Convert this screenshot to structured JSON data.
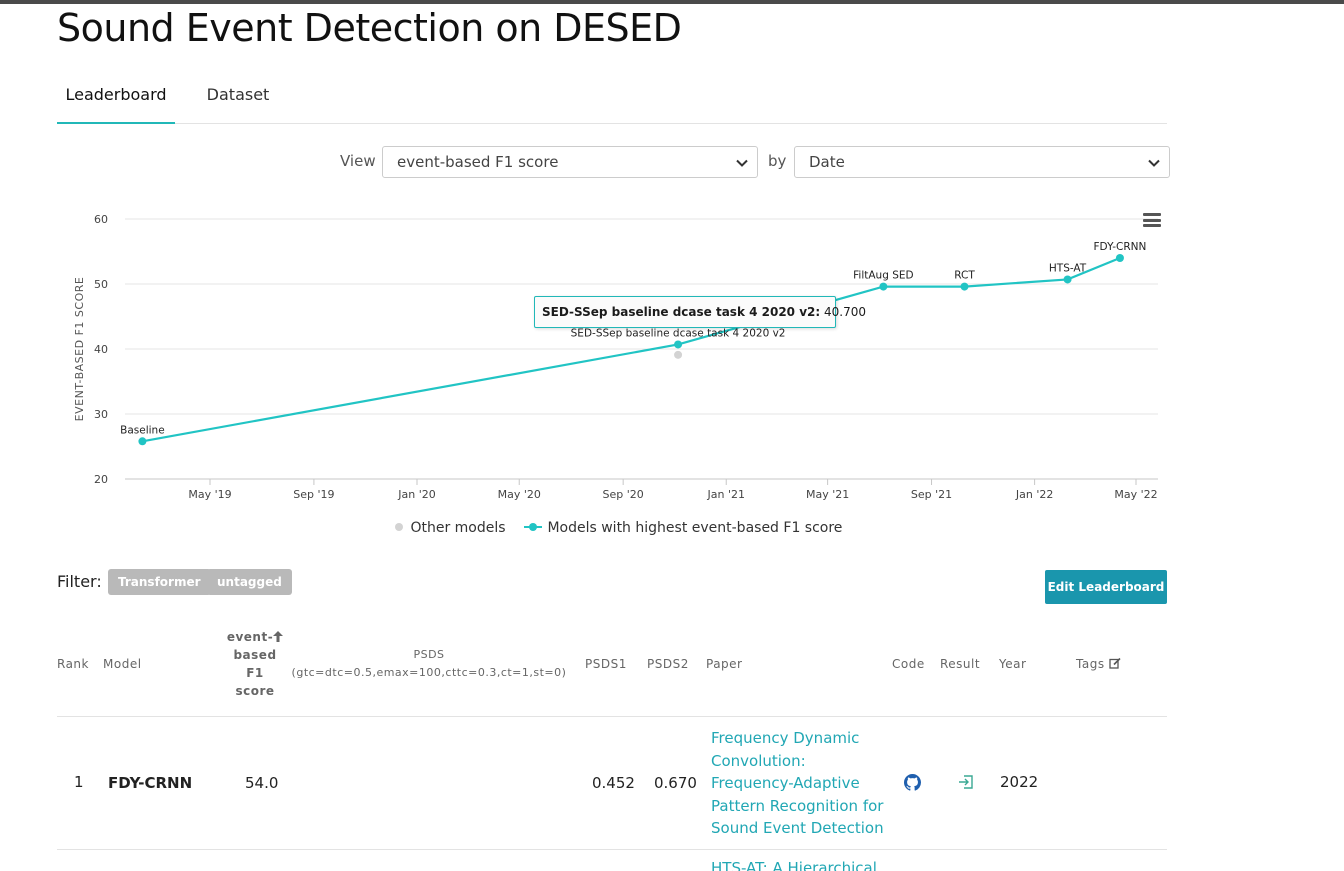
{
  "page": {
    "title": "Sound Event Detection on DESED"
  },
  "tabs": [
    {
      "label": "Leaderboard"
    },
    {
      "label": "Dataset"
    }
  ],
  "controls": {
    "view_label": "View",
    "view_selected": "event-based F1 score",
    "by_label": "by",
    "by_selected": "Date"
  },
  "chart_data": {
    "type": "line",
    "ylabel": "EVENT-BASED F1 SCORE",
    "ylim": [
      20,
      60
    ],
    "y_ticks": [
      20,
      30,
      40,
      50,
      60
    ],
    "x_axis": "date",
    "x_ticks": [
      "May '19",
      "Sep '19",
      "Jan '20",
      "May '20",
      "Sep '20",
      "Jan '21",
      "May '21",
      "Sep '21",
      "Jan '22",
      "May '22"
    ],
    "x_tick_dates": [
      "2019-05-01",
      "2019-09-01",
      "2020-01-01",
      "2020-05-01",
      "2020-09-01",
      "2021-01-01",
      "2021-05-01",
      "2021-09-01",
      "2022-01-01",
      "2022-05-01"
    ],
    "grid": "horizontal",
    "legend": [
      "Other models",
      "Models with highest event-based F1 score"
    ],
    "legend_position": "bottom",
    "series": [
      {
        "name": "Models with highest event-based F1 score",
        "color": "#21c4c4",
        "points": [
          {
            "label": "Baseline",
            "date": "2019-02-10",
            "value": 25.8
          },
          {
            "label": "SED-SSep baseline dcase task 4 2020 v2",
            "date": "2020-11-05",
            "value": 40.7
          },
          {
            "label": "FiltAug SED",
            "date": "2021-07-06",
            "value": 49.6
          },
          {
            "label": "RCT",
            "date": "2021-10-10",
            "value": 49.6
          },
          {
            "label": "HTS-AT",
            "date": "2022-02-09",
            "value": 50.7
          },
          {
            "label": "FDY-CRNN",
            "date": "2022-04-12",
            "value": 54.0
          }
        ]
      },
      {
        "name": "Other models",
        "color": "#d3d3d3",
        "points": [
          {
            "label": "",
            "date": "2020-11-05",
            "value": 39.1
          }
        ]
      }
    ],
    "tooltip": {
      "label": "SED-SSep baseline dcase task 4 2020 v2:",
      "value": "40.700"
    }
  },
  "filter": {
    "label": "Filter:",
    "tags": [
      "Transformer",
      "untagged"
    ]
  },
  "edit_button": "Edit Leaderboard",
  "table": {
    "headers": {
      "rank": "Rank",
      "model": "Model",
      "f1_lines": [
        "event-",
        "based",
        "F1",
        "score"
      ],
      "psds_lines": [
        "PSDS",
        "(gtc=dtc=0.5,emax=100,cttc=0.3,ct=1,st=0)"
      ],
      "psds1": "PSDS1",
      "psds2": "PSDS2",
      "paper": "Paper",
      "code": "Code",
      "result": "Result",
      "year": "Year",
      "tags": "Tags"
    },
    "rows": [
      {
        "rank": "1",
        "model": "FDY-CRNN",
        "f1": "54.0",
        "psds": "",
        "psds1": "0.452",
        "psds2": "0.670",
        "paper": "Frequency Dynamic Convolution: Frequency-Adaptive Pattern Recognition for Sound Event Detection",
        "year": "2022"
      }
    ],
    "next_row_paper": "HTS-AT: A Hierarchical"
  },
  "colors": {
    "accent": "#21b8b8",
    "link": "#21a7b4",
    "button": "#1a96ad",
    "tag": "#b9b9b9"
  },
  "icons": {
    "code": "github-icon",
    "result": "enter-icon",
    "tags": "edit-icon"
  }
}
